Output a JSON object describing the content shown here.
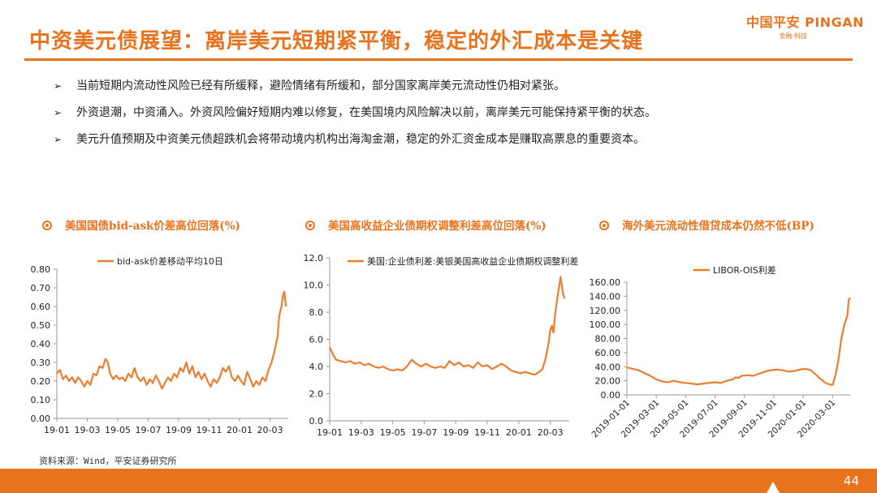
{
  "slide": {
    "title": "中资美元债展望：离岸美元短期紧平衡，稳定的外汇成本是关键",
    "logo_text": "中国平安 PINGAN",
    "logo_sub": "金融·科技",
    "bullets": [
      "当前短期内流动性风险已经有所缓释，避险情绪有所缓和，部分国家离岸美元流动性仍相对紧张。",
      "外资退潮，中资涌入。外资风险偏好短期内难以修复，在美国境内风险解决以前，离岸美元可能保持紧平衡的状态。",
      "美元升值预期及中资美元债超跌机会将带动境内机构出海淘金潮，稳定的外汇资金成本是赚取高票息的重要资本。"
    ],
    "bullet_glyph": "➢",
    "chart_titles": [
      "美国国债bid-ask价差高位回落(%)",
      "美国高收益企业债期权调整利差高位回落(%)",
      "海外美元流动性借贷成本仍然不低(BP)"
    ],
    "source": "资料来源：Wind，平安证券研究所",
    "page_number": "44",
    "accent_color": "#e8731e"
  },
  "chart_data": [
    {
      "type": "line",
      "title": "美国国债bid-ask价差高位回落(%)",
      "ylim": [
        0,
        0.8
      ],
      "yticks": [
        "0.00",
        "0.10",
        "0.20",
        "0.30",
        "0.40",
        "0.50",
        "0.60",
        "0.70",
        "0.80"
      ],
      "xticks": [
        "19-01",
        "19-03",
        "19-05",
        "19-07",
        "19-09",
        "19-11",
        "20-01",
        "20-03"
      ],
      "xrange": [
        0,
        15.2
      ],
      "grid": false,
      "legend_position": "top",
      "series": [
        {
          "name": "bid-ask价差移动平均10日",
          "color": "#ed7d31",
          "points": [
            [
              0,
              0.24
            ],
            [
              0.2,
              0.26
            ],
            [
              0.4,
              0.21
            ],
            [
              0.6,
              0.23
            ],
            [
              0.8,
              0.2
            ],
            [
              1.0,
              0.22
            ],
            [
              1.2,
              0.19
            ],
            [
              1.4,
              0.22
            ],
            [
              1.6,
              0.2
            ],
            [
              1.8,
              0.17
            ],
            [
              2.0,
              0.2
            ],
            [
              2.2,
              0.18
            ],
            [
              2.4,
              0.24
            ],
            [
              2.6,
              0.23
            ],
            [
              2.8,
              0.28
            ],
            [
              3.0,
              0.27
            ],
            [
              3.2,
              0.32
            ],
            [
              3.35,
              0.3
            ],
            [
              3.5,
              0.24
            ],
            [
              3.7,
              0.21
            ],
            [
              3.9,
              0.23
            ],
            [
              4.1,
              0.21
            ],
            [
              4.3,
              0.22
            ],
            [
              4.5,
              0.2
            ],
            [
              4.7,
              0.24
            ],
            [
              4.9,
              0.22
            ],
            [
              5.1,
              0.27
            ],
            [
              5.3,
              0.22
            ],
            [
              5.5,
              0.2
            ],
            [
              5.7,
              0.22
            ],
            [
              5.9,
              0.18
            ],
            [
              6.1,
              0.21
            ],
            [
              6.3,
              0.19
            ],
            [
              6.5,
              0.23
            ],
            [
              6.7,
              0.2
            ],
            [
              6.9,
              0.16
            ],
            [
              7.1,
              0.19
            ],
            [
              7.3,
              0.22
            ],
            [
              7.5,
              0.2
            ],
            [
              7.7,
              0.24
            ],
            [
              7.9,
              0.22
            ],
            [
              8.1,
              0.27
            ],
            [
              8.3,
              0.25
            ],
            [
              8.5,
              0.3
            ],
            [
              8.7,
              0.24
            ],
            [
              8.9,
              0.28
            ],
            [
              9.1,
              0.22
            ],
            [
              9.3,
              0.25
            ],
            [
              9.5,
              0.21
            ],
            [
              9.7,
              0.24
            ],
            [
              9.9,
              0.2
            ],
            [
              10.1,
              0.17
            ],
            [
              10.3,
              0.21
            ],
            [
              10.5,
              0.19
            ],
            [
              10.7,
              0.22
            ],
            [
              10.9,
              0.27
            ],
            [
              11.1,
              0.25
            ],
            [
              11.3,
              0.28
            ],
            [
              11.5,
              0.22
            ],
            [
              11.7,
              0.2
            ],
            [
              11.9,
              0.23
            ],
            [
              12.1,
              0.2
            ],
            [
              12.3,
              0.18
            ],
            [
              12.5,
              0.25
            ],
            [
              12.7,
              0.21
            ],
            [
              12.9,
              0.17
            ],
            [
              13.1,
              0.2
            ],
            [
              13.3,
              0.18
            ],
            [
              13.5,
              0.22
            ],
            [
              13.7,
              0.2
            ],
            [
              13.9,
              0.26
            ],
            [
              14.1,
              0.3
            ],
            [
              14.3,
              0.36
            ],
            [
              14.5,
              0.44
            ],
            [
              14.6,
              0.55
            ],
            [
              14.75,
              0.6
            ],
            [
              14.85,
              0.66
            ],
            [
              14.95,
              0.68
            ],
            [
              15.0,
              0.63
            ],
            [
              15.05,
              0.6
            ]
          ]
        }
      ]
    },
    {
      "type": "line",
      "title": "美国高收益企业债期权调整利差高位回落(%)",
      "ylim": [
        0,
        12
      ],
      "yticks": [
        "0.0",
        "2.0",
        "4.0",
        "6.0",
        "8.0",
        "10.0",
        "12.0"
      ],
      "xticks": [
        "19-01",
        "19-03",
        "19-05",
        "19-07",
        "19-09",
        "19-11",
        "20-01",
        "20-03"
      ],
      "xrange": [
        0,
        15.2
      ],
      "grid": false,
      "legend_position": "top",
      "series": [
        {
          "name": "美国:企业债利差:美银美国高收益企业债期权调整利差",
          "color": "#ed7d31",
          "points": [
            [
              0,
              5.4
            ],
            [
              0.2,
              4.9
            ],
            [
              0.4,
              4.5
            ],
            [
              0.7,
              4.4
            ],
            [
              1.0,
              4.3
            ],
            [
              1.3,
              4.4
            ],
            [
              1.6,
              4.2
            ],
            [
              1.9,
              4.3
            ],
            [
              2.2,
              4.1
            ],
            [
              2.5,
              4.2
            ],
            [
              2.8,
              4.0
            ],
            [
              3.1,
              3.9
            ],
            [
              3.4,
              4.0
            ],
            [
              3.7,
              3.8
            ],
            [
              4.0,
              3.7
            ],
            [
              4.3,
              3.8
            ],
            [
              4.6,
              3.7
            ],
            [
              4.9,
              4.0
            ],
            [
              5.2,
              4.5
            ],
            [
              5.5,
              4.2
            ],
            [
              5.8,
              4.0
            ],
            [
              6.1,
              4.2
            ],
            [
              6.4,
              4.0
            ],
            [
              6.7,
              3.9
            ],
            [
              7.0,
              4.0
            ],
            [
              7.3,
              3.9
            ],
            [
              7.6,
              4.4
            ],
            [
              7.9,
              4.1
            ],
            [
              8.2,
              4.3
            ],
            [
              8.5,
              4.0
            ],
            [
              8.8,
              4.1
            ],
            [
              9.1,
              3.9
            ],
            [
              9.4,
              4.3
            ],
            [
              9.7,
              4.0
            ],
            [
              10.0,
              4.1
            ],
            [
              10.3,
              3.8
            ],
            [
              10.6,
              4.0
            ],
            [
              10.9,
              4.2
            ],
            [
              11.2,
              4.0
            ],
            [
              11.5,
              3.7
            ],
            [
              11.8,
              3.6
            ],
            [
              12.1,
              3.5
            ],
            [
              12.4,
              3.6
            ],
            [
              12.7,
              3.5
            ],
            [
              13.0,
              3.4
            ],
            [
              13.3,
              3.6
            ],
            [
              13.5,
              3.8
            ],
            [
              13.7,
              4.6
            ],
            [
              13.9,
              5.8
            ],
            [
              14.0,
              6.7
            ],
            [
              14.1,
              7.0
            ],
            [
              14.2,
              6.5
            ],
            [
              14.3,
              7.8
            ],
            [
              14.4,
              8.7
            ],
            [
              14.5,
              9.5
            ],
            [
              14.6,
              10.2
            ],
            [
              14.65,
              10.6
            ],
            [
              14.7,
              10.2
            ],
            [
              14.8,
              9.4
            ],
            [
              14.9,
              9.0
            ]
          ]
        }
      ]
    },
    {
      "type": "line",
      "title": "海外美元流动性借贷成本仍然不低(BP)",
      "ylim": [
        0,
        160
      ],
      "yticks": [
        "0.00",
        "20.00",
        "40.00",
        "60.00",
        "80.00",
        "100.00",
        "120.00",
        "140.00",
        "160.00"
      ],
      "xticks": [
        "2019-01-01",
        "2019-03-01",
        "2019-05-01",
        "2019-07-01",
        "2019-09-01",
        "2019-11-01",
        "2020-01-01",
        "2020-03-01"
      ],
      "xrange": [
        0,
        15.2
      ],
      "grid": false,
      "legend_position": "top",
      "series": [
        {
          "name": "LIBOR-OIS利差",
          "color": "#ed7d31",
          "points": [
            [
              0,
              39
            ],
            [
              0.4,
              37
            ],
            [
              0.8,
              35
            ],
            [
              1.2,
              31
            ],
            [
              1.6,
              27
            ],
            [
              2.0,
              22
            ],
            [
              2.4,
              19
            ],
            [
              2.8,
              18
            ],
            [
              3.2,
              20
            ],
            [
              3.6,
              18
            ],
            [
              4.0,
              17
            ],
            [
              4.4,
              16
            ],
            [
              4.8,
              15
            ],
            [
              5.2,
              16
            ],
            [
              5.6,
              17
            ],
            [
              6.0,
              18
            ],
            [
              6.4,
              17
            ],
            [
              6.8,
              20
            ],
            [
              7.2,
              22
            ],
            [
              7.4,
              25
            ],
            [
              7.6,
              24
            ],
            [
              7.8,
              27
            ],
            [
              8.2,
              28
            ],
            [
              8.6,
              27
            ],
            [
              9.0,
              30
            ],
            [
              9.4,
              33
            ],
            [
              9.8,
              35
            ],
            [
              10.2,
              36
            ],
            [
              10.6,
              35
            ],
            [
              11.0,
              33
            ],
            [
              11.4,
              34
            ],
            [
              11.8,
              36
            ],
            [
              12.2,
              37
            ],
            [
              12.5,
              35
            ],
            [
              12.8,
              30
            ],
            [
              13.1,
              24
            ],
            [
              13.4,
              19
            ],
            [
              13.6,
              16
            ],
            [
              13.8,
              15
            ],
            [
              14.0,
              14
            ],
            [
              14.2,
              28
            ],
            [
              14.4,
              50
            ],
            [
              14.6,
              80
            ],
            [
              14.8,
              100
            ],
            [
              15.0,
              112
            ],
            [
              15.1,
              135
            ],
            [
              15.2,
              138
            ]
          ]
        }
      ]
    }
  ]
}
